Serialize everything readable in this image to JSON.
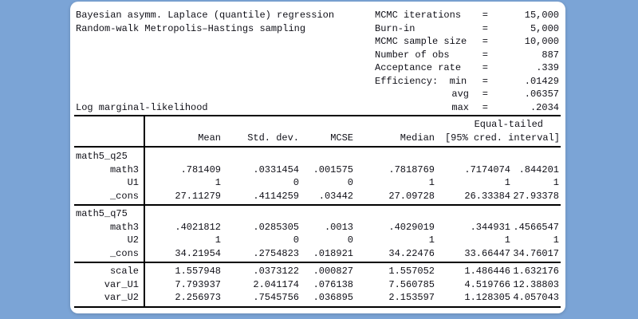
{
  "colors": {
    "background": "#7ba4d6",
    "panel": "#ffffff",
    "text": "#101018",
    "rule": "#000000"
  },
  "header": {
    "title_line1": "Bayesian asymm. Laplace (quantile) regression",
    "title_line2": "Random-walk Metropolis–Hastings sampling",
    "log_marginal_label": "Log marginal-likelihood",
    "stats": [
      {
        "label": "MCMC iterations",
        "eq": "=",
        "value": "15,000"
      },
      {
        "label": "Burn-in",
        "eq": "=",
        "value": "5,000"
      },
      {
        "label": "MCMC sample size",
        "eq": "=",
        "value": "10,000"
      },
      {
        "label": "Number of obs",
        "eq": "=",
        "value": "887"
      },
      {
        "label": "Acceptance rate",
        "eq": "=",
        "value": ".339"
      },
      {
        "label": "Efficiency:  min",
        "eq": "=",
        "value": ".01429"
      },
      {
        "label": "avg",
        "eq": "=",
        "value": ".06357",
        "align": "right"
      },
      {
        "label": "max",
        "eq": "=",
        "value": ".2034",
        "align": "right"
      }
    ]
  },
  "table": {
    "subheader": "Equal-tailed",
    "columns": [
      "Mean",
      "Std. dev.",
      "MCSE",
      "Median",
      "[95% cred. interval]"
    ],
    "groups": [
      {
        "label": "math5_q25",
        "rows": [
          {
            "name": "math3",
            "cells": [
              ".781409",
              ".0331454",
              ".001575",
              ".7818769",
              ".7174074",
              ".844201"
            ]
          },
          {
            "name": "U1",
            "cells": [
              "1",
              "0",
              "0",
              "1",
              "1",
              "1"
            ]
          },
          {
            "name": "_cons",
            "cells": [
              "27.11279",
              ".4114259",
              ".03442",
              "27.09728",
              "26.33384",
              "27.93378"
            ]
          }
        ]
      },
      {
        "label": "math5_q75",
        "rows": [
          {
            "name": "math3",
            "cells": [
              ".4021812",
              ".0285305",
              ".0013",
              ".4029019",
              ".344931",
              ".4566547"
            ]
          },
          {
            "name": "U2",
            "cells": [
              "1",
              "0",
              "0",
              "1",
              "1",
              "1"
            ]
          },
          {
            "name": "_cons",
            "cells": [
              "34.21954",
              ".2754823",
              ".018921",
              "34.22476",
              "33.66447",
              "34.76017"
            ]
          }
        ]
      },
      {
        "label": "",
        "rows": [
          {
            "name": "scale",
            "cells": [
              "1.557948",
              ".0373122",
              ".000827",
              "1.557052",
              "1.486446",
              "1.632176"
            ]
          },
          {
            "name": "var_U1",
            "cells": [
              "7.793937",
              "2.041174",
              ".076138",
              "7.560785",
              "4.519766",
              "12.38803"
            ]
          },
          {
            "name": "var_U2",
            "cells": [
              "2.256973",
              ".7545756",
              ".036895",
              "2.153597",
              "1.128305",
              "4.057043"
            ]
          }
        ]
      }
    ]
  }
}
